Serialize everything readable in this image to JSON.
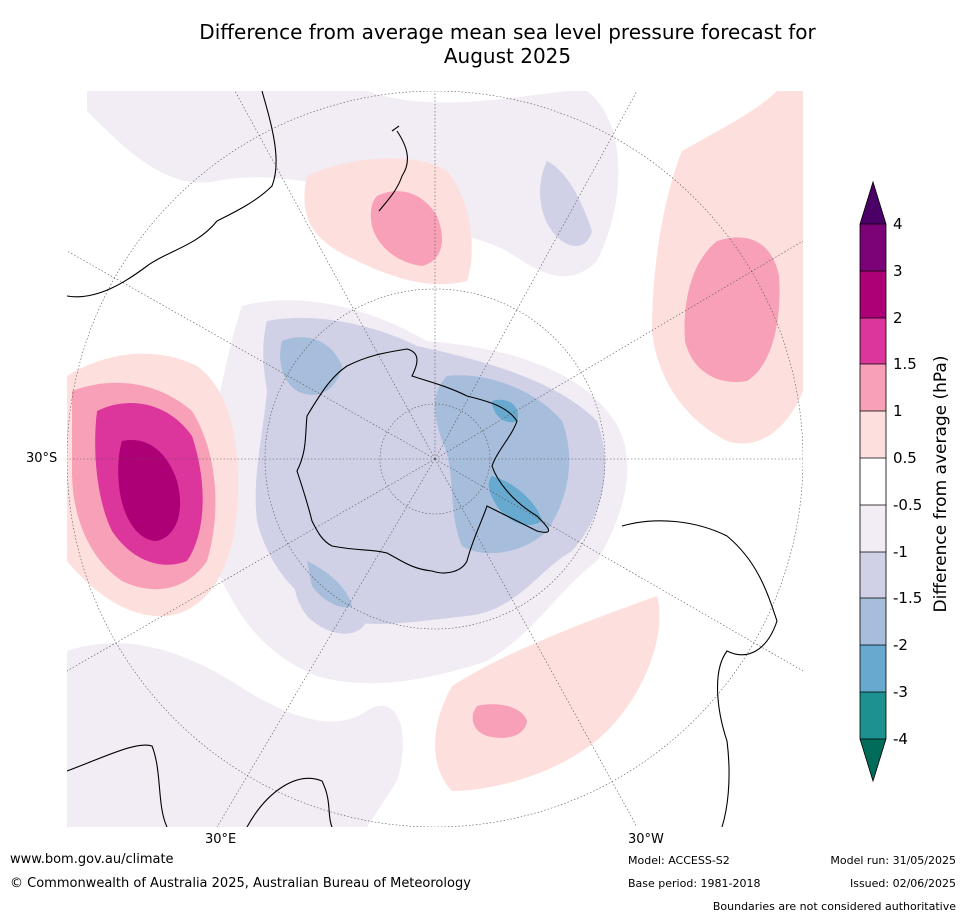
{
  "title_line1": "Difference from average mean sea level pressure forecast for",
  "title_line2": "August 2025",
  "lat_label": "30°S",
  "lon_label_east": "30°E",
  "lon_label_west": "30°W",
  "colorbar": {
    "title": "Difference from average (hPa)",
    "ticks": [
      "4",
      "3",
      "2",
      "1.5",
      "1",
      "0.5",
      "-0.5",
      "-1",
      "-1.5",
      "-2",
      "-3",
      "-4"
    ],
    "colors": {
      "gt4": "#4b0068",
      "3_4": "#7b0277",
      "2_3": "#ad0077",
      "1.5_2": "#dc359b",
      "1_1.5": "#f8a0b8",
      "0.5_1": "#fde0de",
      "neutral": "#ffffff",
      "m1_m0.5": "#f2ecf5",
      "m1.5_m1": "#d0d1e6",
      "m2_m1.5": "#a6bddb",
      "m3_m2": "#67a9cf",
      "m4_m3": "#1d918f",
      "lt_m4": "#016c59"
    }
  },
  "footer": {
    "website": "www.bom.gov.au/climate",
    "copyright": "© Commonwealth of Australia 2025, Australian Bureau of Meteorology",
    "model": "Model: ACCESS-S2",
    "base_period": "Base period: 1981-2018",
    "model_run": "Model run: 31/05/2025",
    "issued": "Issued: 02/06/2025",
    "disclaimer": "Boundaries are not considered authoritative"
  }
}
